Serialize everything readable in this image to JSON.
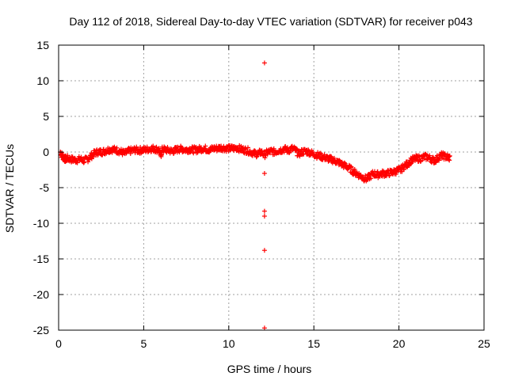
{
  "chart_data": {
    "type": "scatter",
    "title": "Day 112 of 2018, Sidereal Day-to-day VTEC variation (SDTVAR) for receiver p043",
    "xlabel": "GPS time / hours",
    "ylabel": "SDTVAR / TECUs",
    "xlim": [
      0,
      25
    ],
    "ylim": [
      -25,
      15
    ],
    "xticks": [
      "0",
      "5",
      "10",
      "15",
      "20",
      "25"
    ],
    "yticks": [
      "15",
      "10",
      "5",
      "0",
      "-5",
      "-10",
      "-15",
      "-20",
      "-25"
    ],
    "grid": true,
    "legend": "none",
    "marker": "+",
    "colors": {
      "series": "#ff0000",
      "grid": "#a0a0a0",
      "axis": "#000000"
    },
    "series": [
      {
        "name": "SDTVAR",
        "x": [
          0.1,
          0.2,
          0.3,
          0.4,
          0.5,
          0.7,
          0.9,
          1.1,
          1.3,
          1.5,
          1.7,
          1.9,
          2.1,
          2.3,
          2.5,
          2.7,
          2.9,
          3.1,
          3.3,
          3.5,
          3.7,
          3.9,
          4.1,
          4.3,
          4.5,
          4.7,
          4.9,
          5.1,
          5.3,
          5.5,
          5.7,
          5.9,
          6.0,
          6.1,
          6.3,
          6.5,
          6.7,
          6.9,
          7.1,
          7.3,
          7.5,
          7.7,
          7.9,
          8.1,
          8.3,
          8.5,
          8.7,
          8.9,
          9.1,
          9.3,
          9.5,
          9.7,
          9.9,
          10.1,
          10.3,
          10.5,
          10.7,
          10.9,
          11.1,
          11.3,
          11.5,
          11.7,
          11.9,
          12.1,
          12.3,
          12.5,
          12.7,
          12.9,
          13.1,
          13.3,
          13.5,
          13.7,
          13.9,
          14.1,
          14.3,
          14.5,
          14.7,
          14.9,
          15.1,
          15.3,
          15.5,
          15.7,
          15.9,
          16.1,
          16.3,
          16.5,
          16.7,
          16.9,
          17.1,
          17.3,
          17.5,
          17.7,
          17.9,
          18.1,
          18.3,
          18.5,
          18.7,
          18.9,
          19.1,
          19.3,
          19.5,
          19.7,
          19.9,
          20.1,
          20.3,
          20.5,
          20.7,
          20.9,
          21.1,
          21.3,
          21.5,
          21.7,
          21.9,
          22.1,
          22.3,
          22.5,
          22.7,
          22.9
        ],
        "y": [
          0.0,
          -0.5,
          -0.8,
          -1.0,
          -0.9,
          -1.0,
          -1.1,
          -1.1,
          -1.0,
          -1.2,
          -1.0,
          -0.6,
          -0.2,
          0.0,
          0.0,
          0.1,
          0.3,
          0.4,
          0.3,
          0.2,
          0.0,
          -0.2,
          0.1,
          0.2,
          0.3,
          0.2,
          0.3,
          0.3,
          0.4,
          0.5,
          0.4,
          0.3,
          -0.5,
          0.4,
          0.3,
          0.2,
          0.1,
          0.3,
          0.4,
          0.4,
          0.3,
          0.4,
          0.3,
          0.3,
          0.4,
          0.5,
          0.4,
          0.3,
          0.5,
          0.5,
          0.6,
          0.6,
          0.5,
          0.5,
          0.5,
          0.6,
          0.4,
          0.3,
          0.2,
          0.0,
          -0.2,
          -0.3,
          0.0,
          -0.4,
          0.0,
          0.1,
          0.0,
          0.2,
          0.3,
          0.4,
          0.2,
          0.5,
          0.3,
          -0.3,
          0.0,
          0.1,
          0.0,
          -0.2,
          -0.4,
          -0.5,
          -0.7,
          -0.8,
          -1.0,
          -1.1,
          -1.3,
          -1.5,
          -1.8,
          -2.0,
          -2.3,
          -2.7,
          -3.0,
          -3.3,
          -3.6,
          -3.8,
          -3.4,
          -3.0,
          -3.2,
          -3.1,
          -3.0,
          -3.0,
          -2.9,
          -2.8,
          -2.6,
          -2.5,
          -2.0,
          -1.7,
          -1.2,
          -1.0,
          -0.9,
          -0.9,
          -0.7,
          -0.7,
          -1.0,
          -1.2,
          -0.8,
          -0.5,
          -0.6,
          -0.8
        ]
      },
      {
        "name": "outliers",
        "x": [
          12.1,
          12.1,
          12.1,
          12.1,
          12.1,
          12.1
        ],
        "y": [
          12.5,
          -3.0,
          -8.3,
          -9.0,
          -13.8,
          -24.7
        ]
      }
    ]
  }
}
